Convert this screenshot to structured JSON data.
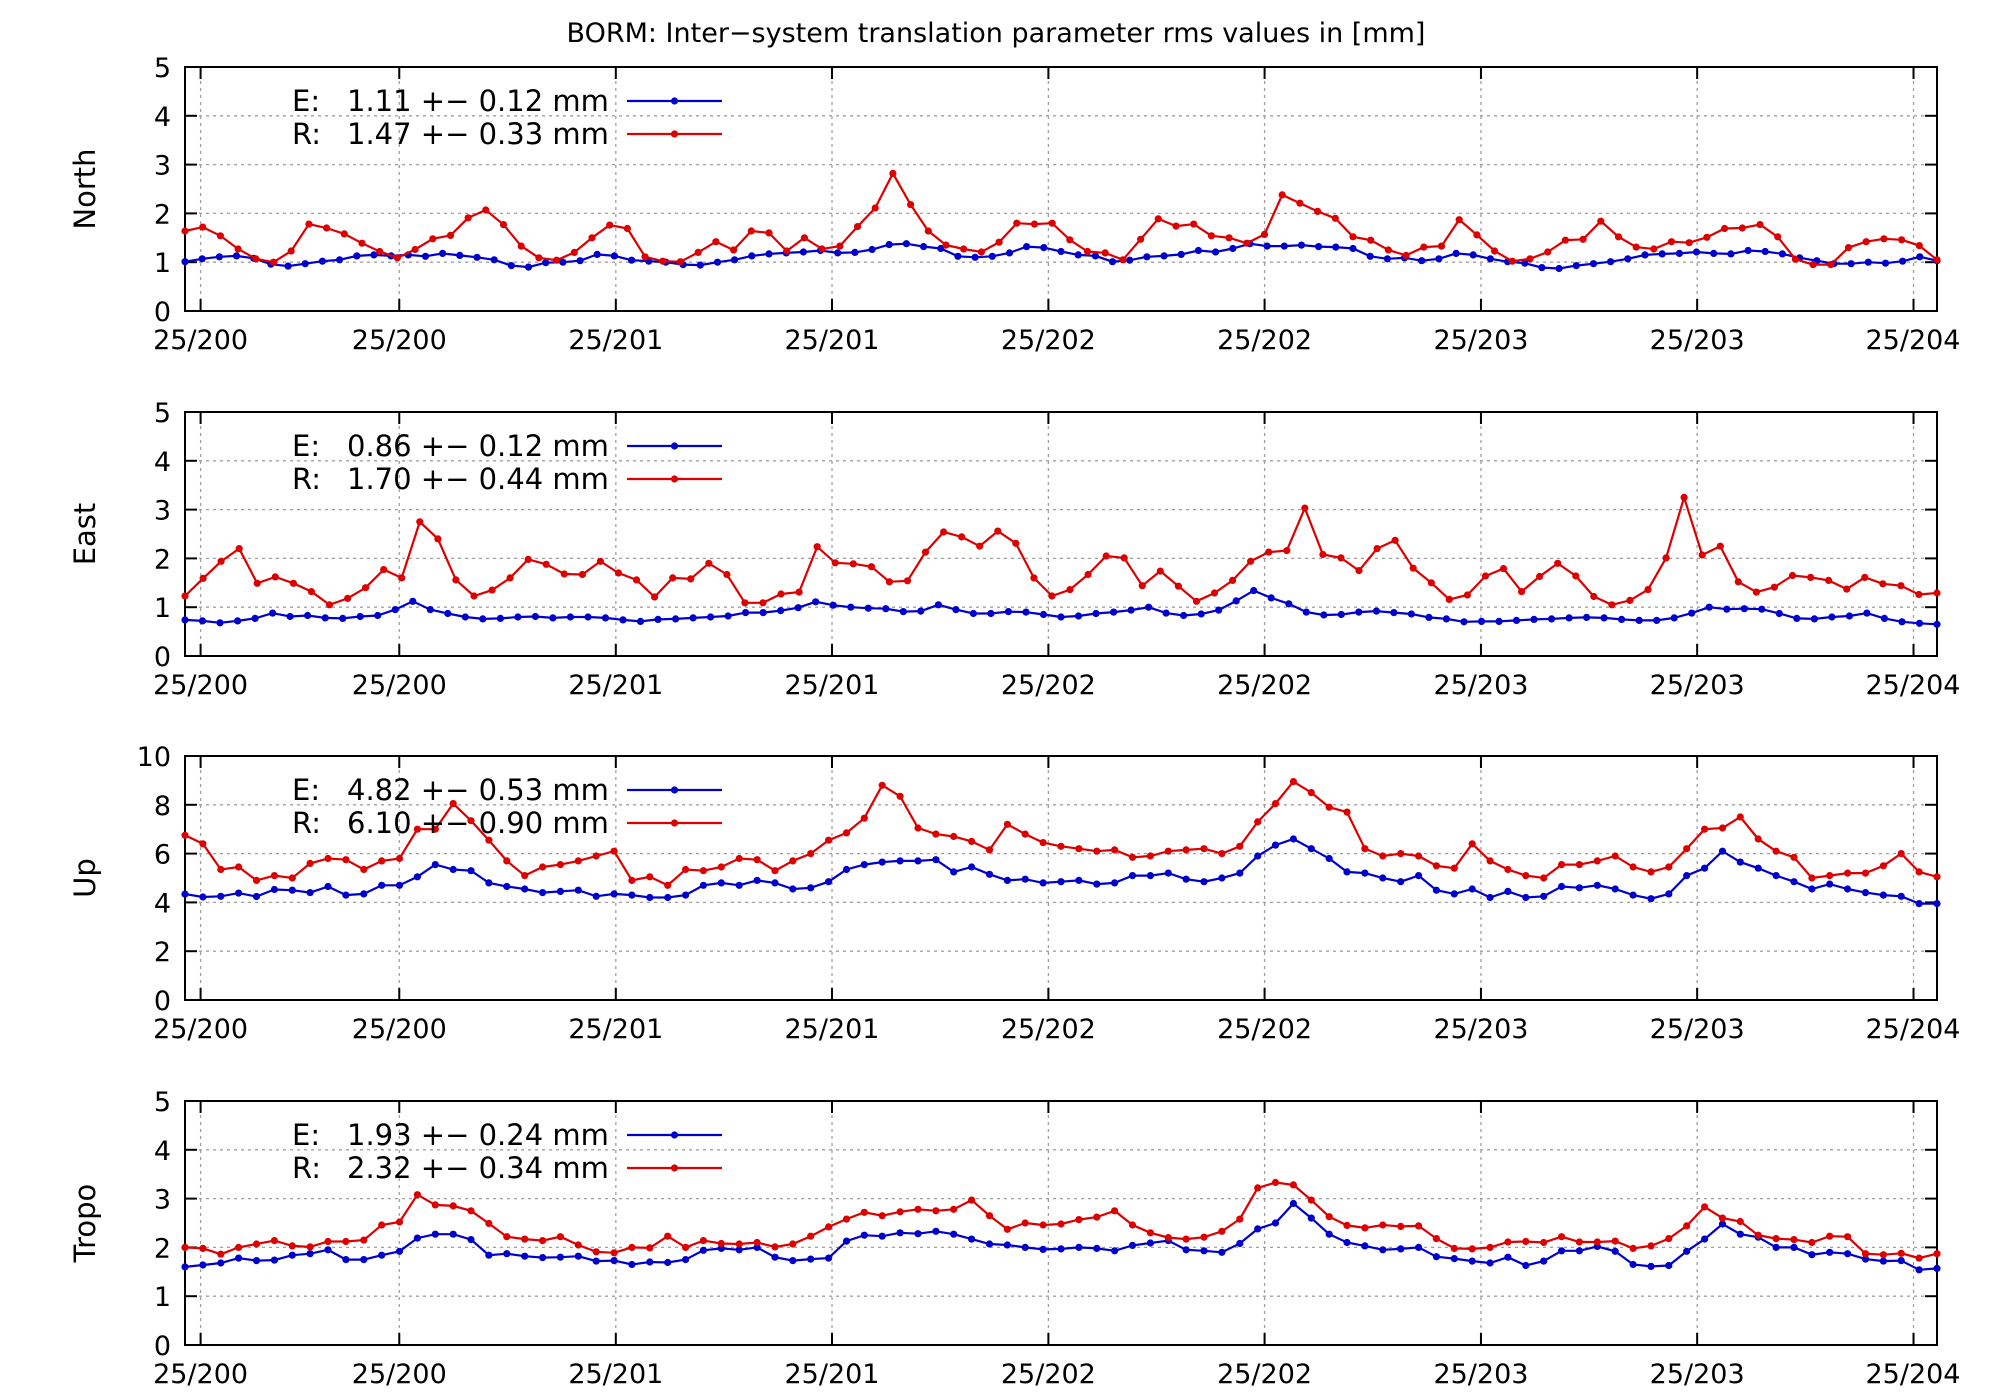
{
  "figure": {
    "title": "BORM: Inter−system translation parameter rms values in [mm]"
  },
  "chart_data": [
    {
      "type": "line",
      "ylabel": "North",
      "ylim": [
        0,
        5
      ],
      "yticks": [
        0,
        1,
        2,
        3,
        4,
        5
      ],
      "xticks": [
        "25/200",
        "25/200",
        "25/201",
        "25/201",
        "25/202",
        "25/202",
        "25/203",
        "25/203",
        "25/204"
      ],
      "grid": true,
      "legend": "top-left",
      "series": [
        {
          "name": "E:",
          "stat": "1.11 +− 0.12 mm",
          "color": "#0000cc",
          "values": [
            1.01,
            1.07,
            1.11,
            1.13,
            1.08,
            0.96,
            0.92,
            0.97,
            1.02,
            1.05,
            1.13,
            1.15,
            1.13,
            1.15,
            1.12,
            1.18,
            1.14,
            1.1,
            1.05,
            0.93,
            0.9,
            0.99,
            1.0,
            1.03,
            1.16,
            1.13,
            1.04,
            1.02,
            1.0,
            0.95,
            0.94,
            1.0,
            1.05,
            1.13,
            1.17,
            1.19,
            1.21,
            1.24,
            1.19,
            1.2,
            1.26,
            1.36,
            1.38,
            1.32,
            1.28,
            1.12,
            1.1,
            1.12,
            1.19,
            1.32,
            1.3,
            1.22,
            1.15,
            1.13,
            1.01,
            1.04,
            1.11,
            1.13,
            1.16,
            1.24,
            1.21,
            1.28,
            1.38,
            1.33,
            1.33,
            1.35,
            1.32,
            1.31,
            1.28,
            1.12,
            1.07,
            1.09,
            1.03,
            1.07,
            1.18,
            1.15,
            1.07,
            1.01,
            0.98,
            0.89,
            0.87,
            0.93,
            0.97,
            1.01,
            1.07,
            1.15,
            1.17,
            1.18,
            1.21,
            1.18,
            1.17,
            1.24,
            1.22,
            1.17,
            1.09,
            1.03,
            0.97,
            0.97,
            1.0,
            0.98,
            1.02,
            1.11,
            1.03
          ]
        },
        {
          "name": "R:",
          "stat": "1.47 +− 0.33 mm",
          "color": "#dd0000",
          "values": [
            1.64,
            1.72,
            1.54,
            1.27,
            1.07,
            1.0,
            1.23,
            1.78,
            1.7,
            1.58,
            1.39,
            1.22,
            1.09,
            1.26,
            1.48,
            1.55,
            1.91,
            2.07,
            1.77,
            1.33,
            1.09,
            1.04,
            1.2,
            1.5,
            1.76,
            1.69,
            1.11,
            1.02,
            1.01,
            1.2,
            1.42,
            1.25,
            1.64,
            1.6,
            1.23,
            1.5,
            1.27,
            1.33,
            1.73,
            2.11,
            2.82,
            2.18,
            1.64,
            1.35,
            1.27,
            1.21,
            1.41,
            1.8,
            1.78,
            1.8,
            1.46,
            1.22,
            1.19,
            1.05,
            1.47,
            1.89,
            1.74,
            1.78,
            1.54,
            1.5,
            1.39,
            1.57,
            2.38,
            2.21,
            2.04,
            1.9,
            1.52,
            1.45,
            1.25,
            1.14,
            1.31,
            1.33,
            1.87,
            1.56,
            1.23,
            1.02,
            1.07,
            1.21,
            1.45,
            1.47,
            1.84,
            1.52,
            1.31,
            1.27,
            1.42,
            1.4,
            1.51,
            1.69,
            1.7,
            1.77,
            1.52,
            1.06,
            0.95,
            0.95,
            1.3,
            1.42,
            1.48,
            1.46,
            1.34,
            1.05
          ]
        }
      ]
    },
    {
      "type": "line",
      "ylabel": "East",
      "ylim": [
        0,
        5
      ],
      "yticks": [
        0,
        1,
        2,
        3,
        4,
        5
      ],
      "xticks": [
        "25/200",
        "25/200",
        "25/201",
        "25/201",
        "25/202",
        "25/202",
        "25/203",
        "25/203",
        "25/204"
      ],
      "grid": true,
      "legend": "top-left",
      "series": [
        {
          "name": "E:",
          "stat": "0.86 +− 0.12 mm",
          "color": "#0000cc",
          "values": [
            0.74,
            0.72,
            0.68,
            0.72,
            0.77,
            0.88,
            0.81,
            0.83,
            0.78,
            0.77,
            0.81,
            0.83,
            0.95,
            1.12,
            0.95,
            0.87,
            0.8,
            0.76,
            0.77,
            0.8,
            0.81,
            0.78,
            0.8,
            0.8,
            0.78,
            0.74,
            0.71,
            0.75,
            0.76,
            0.78,
            0.8,
            0.82,
            0.89,
            0.89,
            0.93,
            0.99,
            1.11,
            1.04,
            1.0,
            0.98,
            0.97,
            0.91,
            0.92,
            1.05,
            0.95,
            0.87,
            0.87,
            0.91,
            0.9,
            0.85,
            0.8,
            0.82,
            0.87,
            0.9,
            0.94,
            1.0,
            0.88,
            0.83,
            0.86,
            0.94,
            1.13,
            1.34,
            1.19,
            1.07,
            0.9,
            0.84,
            0.85,
            0.9,
            0.92,
            0.89,
            0.86,
            0.79,
            0.76,
            0.7,
            0.71,
            0.71,
            0.73,
            0.75,
            0.76,
            0.78,
            0.79,
            0.78,
            0.75,
            0.73,
            0.73,
            0.78,
            0.88,
            1.0,
            0.96,
            0.97,
            0.96,
            0.87,
            0.77,
            0.76,
            0.8,
            0.82,
            0.88,
            0.77,
            0.7,
            0.67,
            0.65
          ]
        },
        {
          "name": "R:",
          "stat": "1.70 +− 0.44 mm",
          "color": "#dd0000",
          "values": [
            1.23,
            1.59,
            1.94,
            2.2,
            1.49,
            1.62,
            1.49,
            1.32,
            1.05,
            1.18,
            1.4,
            1.77,
            1.6,
            2.75,
            2.4,
            1.56,
            1.23,
            1.35,
            1.6,
            1.98,
            1.88,
            1.68,
            1.67,
            1.94,
            1.7,
            1.56,
            1.21,
            1.6,
            1.58,
            1.9,
            1.67,
            1.09,
            1.09,
            1.27,
            1.31,
            2.24,
            1.91,
            1.89,
            1.83,
            1.52,
            1.54,
            2.13,
            2.54,
            2.44,
            2.25,
            2.56,
            2.31,
            1.6,
            1.23,
            1.36,
            1.67,
            2.05,
            2.01,
            1.44,
            1.74,
            1.43,
            1.12,
            1.29,
            1.55,
            1.94,
            2.13,
            2.16,
            3.03,
            2.08,
            2.01,
            1.75,
            2.2,
            2.37,
            1.8,
            1.5,
            1.16,
            1.25,
            1.64,
            1.79,
            1.32,
            1.63,
            1.9,
            1.64,
            1.22,
            1.05,
            1.14,
            1.36,
            2.01,
            3.25,
            2.07,
            2.25,
            1.52,
            1.31,
            1.41,
            1.65,
            1.61,
            1.55,
            1.37,
            1.61,
            1.48,
            1.44,
            1.26,
            1.29
          ]
        }
      ]
    },
    {
      "type": "line",
      "ylabel": "Up",
      "ylim": [
        0,
        10
      ],
      "yticks": [
        0,
        2,
        4,
        6,
        8,
        10
      ],
      "xticks": [
        "25/200",
        "25/200",
        "25/201",
        "25/201",
        "25/202",
        "25/202",
        "25/203",
        "25/203",
        "25/204"
      ],
      "grid": true,
      "legend": "top-left",
      "series": [
        {
          "name": "E:",
          "stat": "4.82 +− 0.53 mm",
          "color": "#0000cc",
          "values": [
            4.34,
            4.22,
            4.25,
            4.38,
            4.24,
            4.53,
            4.5,
            4.4,
            4.65,
            4.3,
            4.35,
            4.7,
            4.7,
            5.05,
            5.55,
            5.35,
            5.3,
            4.8,
            4.65,
            4.55,
            4.4,
            4.45,
            4.5,
            4.25,
            4.35,
            4.3,
            4.2,
            4.2,
            4.3,
            4.7,
            4.8,
            4.7,
            4.9,
            4.8,
            4.55,
            4.6,
            4.85,
            5.35,
            5.55,
            5.65,
            5.7,
            5.7,
            5.75,
            5.25,
            5.45,
            5.15,
            4.9,
            4.95,
            4.8,
            4.85,
            4.9,
            4.75,
            4.8,
            5.1,
            5.1,
            5.2,
            4.95,
            4.85,
            5.0,
            5.2,
            5.9,
            6.35,
            6.6,
            6.2,
            5.8,
            5.25,
            5.2,
            5.0,
            4.85,
            5.1,
            4.5,
            4.35,
            4.55,
            4.2,
            4.45,
            4.2,
            4.25,
            4.65,
            4.6,
            4.7,
            4.55,
            4.3,
            4.15,
            4.35,
            5.1,
            5.4,
            6.1,
            5.65,
            5.4,
            5.1,
            4.85,
            4.55,
            4.75,
            4.55,
            4.4,
            4.3,
            4.25,
            3.95,
            3.95
          ]
        },
        {
          "name": "R:",
          "stat": "6.10 +− 0.90 mm",
          "color": "#dd0000",
          "values": [
            6.75,
            6.4,
            5.35,
            5.45,
            4.9,
            5.1,
            5.0,
            5.6,
            5.8,
            5.75,
            5.35,
            5.7,
            5.8,
            7.0,
            7.0,
            8.05,
            7.35,
            6.55,
            5.7,
            5.1,
            5.45,
            5.55,
            5.7,
            5.9,
            6.1,
            4.9,
            5.05,
            4.7,
            5.35,
            5.3,
            5.45,
            5.8,
            5.75,
            5.3,
            5.7,
            6.0,
            6.55,
            6.85,
            7.45,
            8.8,
            8.35,
            7.05,
            6.8,
            6.7,
            6.5,
            6.15,
            7.2,
            6.8,
            6.45,
            6.3,
            6.2,
            6.1,
            6.15,
            5.85,
            5.9,
            6.1,
            6.15,
            6.2,
            6.0,
            6.3,
            7.3,
            8.05,
            8.95,
            8.5,
            7.9,
            7.7,
            6.2,
            5.9,
            6.0,
            5.9,
            5.5,
            5.4,
            6.4,
            5.7,
            5.35,
            5.1,
            5.0,
            5.55,
            5.55,
            5.7,
            5.9,
            5.45,
            5.25,
            5.45,
            6.2,
            7.0,
            7.05,
            7.5,
            6.6,
            6.1,
            5.85,
            5.0,
            5.1,
            5.2,
            5.2,
            5.5,
            6.0,
            5.25,
            5.05
          ]
        }
      ]
    },
    {
      "type": "line",
      "ylabel": "Tropo",
      "ylim": [
        0,
        5
      ],
      "yticks": [
        0,
        1,
        2,
        3,
        4,
        5
      ],
      "xticks": [
        "25/200",
        "25/200",
        "25/201",
        "25/201",
        "25/202",
        "25/202",
        "25/203",
        "25/203",
        "25/204"
      ],
      "grid": true,
      "legend": "top-left",
      "series": [
        {
          "name": "E:",
          "stat": "1.93 +− 0.24 mm",
          "color": "#0000cc",
          "values": [
            1.6,
            1.64,
            1.68,
            1.78,
            1.73,
            1.74,
            1.84,
            1.87,
            1.95,
            1.75,
            1.75,
            1.84,
            1.92,
            2.19,
            2.27,
            2.27,
            2.16,
            1.84,
            1.87,
            1.82,
            1.79,
            1.8,
            1.82,
            1.72,
            1.73,
            1.65,
            1.7,
            1.69,
            1.75,
            1.94,
            1.98,
            1.95,
            2.0,
            1.8,
            1.73,
            1.76,
            1.78,
            2.13,
            2.25,
            2.23,
            2.3,
            2.28,
            2.33,
            2.27,
            2.17,
            2.07,
            2.05,
            2.0,
            1.96,
            1.97,
            2.0,
            1.98,
            1.93,
            2.04,
            2.09,
            2.14,
            1.95,
            1.93,
            1.9,
            2.08,
            2.38,
            2.5,
            2.9,
            2.6,
            2.27,
            2.1,
            2.03,
            1.95,
            1.97,
            2.0,
            1.81,
            1.77,
            1.72,
            1.68,
            1.8,
            1.63,
            1.72,
            1.93,
            1.93,
            2.02,
            1.92,
            1.65,
            1.61,
            1.63,
            1.92,
            2.17,
            2.48,
            2.27,
            2.21,
            2.0,
            2.0,
            1.85,
            1.9,
            1.87,
            1.76,
            1.72,
            1.73,
            1.54,
            1.57
          ]
        },
        {
          "name": "R:",
          "stat": "2.32 +− 0.34 mm",
          "color": "#dd0000",
          "values": [
            2.0,
            1.98,
            1.86,
            2.0,
            2.07,
            2.14,
            2.03,
            2.01,
            2.12,
            2.12,
            2.15,
            2.46,
            2.52,
            3.08,
            2.87,
            2.85,
            2.75,
            2.49,
            2.22,
            2.17,
            2.14,
            2.22,
            2.05,
            1.91,
            1.89,
            2.0,
            1.99,
            2.23,
            2.0,
            2.14,
            2.08,
            2.07,
            2.1,
            2.01,
            2.07,
            2.23,
            2.42,
            2.58,
            2.72,
            2.65,
            2.73,
            2.78,
            2.75,
            2.78,
            2.97,
            2.65,
            2.37,
            2.5,
            2.46,
            2.48,
            2.57,
            2.62,
            2.75,
            2.46,
            2.3,
            2.2,
            2.17,
            2.21,
            2.33,
            2.58,
            3.22,
            3.33,
            3.28,
            2.97,
            2.63,
            2.45,
            2.4,
            2.46,
            2.43,
            2.44,
            2.18,
            1.98,
            1.97,
            2.0,
            2.11,
            2.12,
            2.1,
            2.22,
            2.11,
            2.11,
            2.13,
            1.98,
            2.03,
            2.18,
            2.44,
            2.83,
            2.6,
            2.53,
            2.25,
            2.18,
            2.16,
            2.1,
            2.23,
            2.22,
            1.87,
            1.85,
            1.88,
            1.78,
            1.87
          ]
        }
      ]
    }
  ]
}
